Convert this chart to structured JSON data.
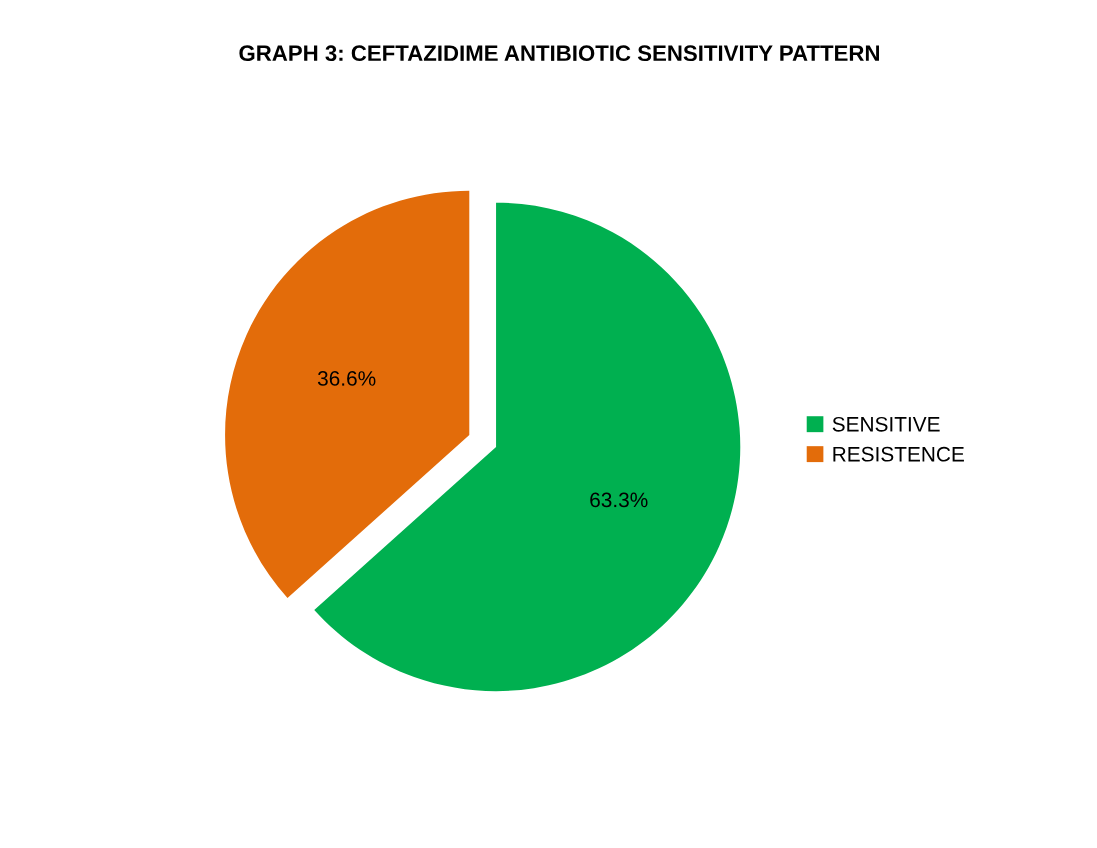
{
  "chart_data": {
    "type": "pie",
    "title": "GRAPH 3: CEFTAZIDIME ANTIBIOTIC SENSITIVITY PATTERN",
    "categories": [
      "SENSITIVE",
      "RESISTENCE"
    ],
    "values": [
      63.3,
      36.6
    ],
    "colors": [
      "#00b050",
      "#e36c0a"
    ],
    "value_labels": [
      "63.3%",
      "36.6%"
    ],
    "legend": "right"
  }
}
